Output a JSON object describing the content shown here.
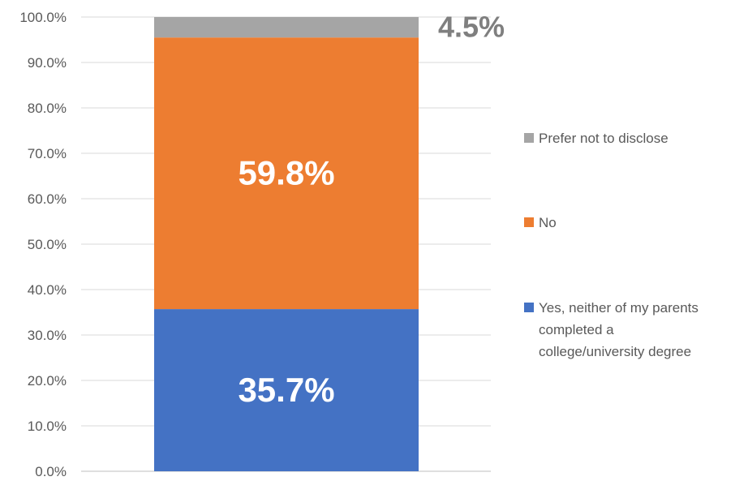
{
  "chart_data": {
    "type": "bar",
    "stacked": true,
    "categories": [
      ""
    ],
    "ylim": [
      0,
      100
    ],
    "y_ticks": [
      "0.0%",
      "10.0%",
      "20.0%",
      "30.0%",
      "40.0%",
      "50.0%",
      "60.0%",
      "70.0%",
      "80.0%",
      "90.0%",
      "100.0%"
    ],
    "grid": true,
    "legend_position": "right",
    "series": [
      {
        "name": "Yes, neither of my parents completed a college/university degree",
        "legend_lines": [
          "Yes, neither of my parents",
          "completed a",
          "college/university degree"
        ],
        "values": [
          35.7
        ],
        "label": "35.7%",
        "color": "#4472C4",
        "label_color": "#FFFFFF"
      },
      {
        "name": "No",
        "legend_lines": [
          "No"
        ],
        "values": [
          59.8
        ],
        "label": "59.8%",
        "color": "#ED7D31",
        "label_color": "#FFFFFF"
      },
      {
        "name": "Prefer not to disclose",
        "legend_lines": [
          "Prefer not to disclose"
        ],
        "values": [
          4.5
        ],
        "label": "4.5%",
        "color": "#A5A5A5",
        "label_color": "#7F7F7F"
      }
    ]
  }
}
